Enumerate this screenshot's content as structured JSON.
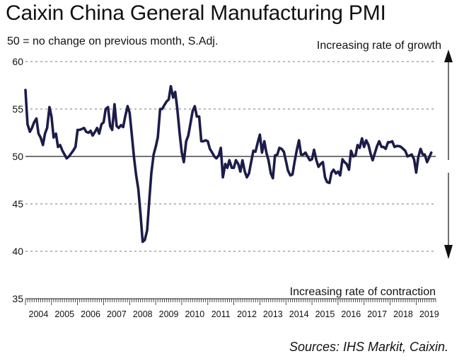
{
  "chart_data": {
    "type": "line",
    "title": "Caixin China General Manufacturing PMI",
    "subtitle": "50 = no change on previous month, S.Adj.",
    "source": "Sources: IHS Markit, Caixin.",
    "annotations": {
      "growth": "Increasing rate of growth",
      "contraction": "Increasing rate of contraction"
    },
    "xlabel": "",
    "ylabel": "",
    "ylim": [
      35,
      60
    ],
    "yticks": [
      35,
      40,
      45,
      50,
      55,
      60
    ],
    "xlim": [
      2004.0,
      2019.75
    ],
    "years": [
      "2004",
      "2005",
      "2006",
      "2007",
      "2008",
      "2009",
      "2010",
      "2011",
      "2012",
      "2013",
      "2014",
      "2015",
      "2016",
      "2017",
      "2018",
      "2019"
    ],
    "reference_line": 50,
    "series": [
      {
        "name": "Caixin China General Manufacturing PMI",
        "color": "#1c1c4a",
        "x": [
          2004.0,
          2004.08,
          2004.17,
          2004.25,
          2004.33,
          2004.42,
          2004.5,
          2004.58,
          2004.67,
          2004.75,
          2004.83,
          2004.92,
          2005.0,
          2005.08,
          2005.17,
          2005.25,
          2005.33,
          2005.42,
          2005.5,
          2005.58,
          2005.67,
          2005.75,
          2005.83,
          2005.92,
          2006.0,
          2006.08,
          2006.17,
          2006.25,
          2006.33,
          2006.42,
          2006.5,
          2006.58,
          2006.67,
          2006.75,
          2006.83,
          2006.92,
          2007.0,
          2007.08,
          2007.17,
          2007.25,
          2007.33,
          2007.42,
          2007.5,
          2007.58,
          2007.67,
          2007.75,
          2007.83,
          2007.92,
          2008.0,
          2008.08,
          2008.17,
          2008.25,
          2008.33,
          2008.42,
          2008.5,
          2008.58,
          2008.67,
          2008.75,
          2008.83,
          2008.92,
          2009.0,
          2009.08,
          2009.17,
          2009.25,
          2009.33,
          2009.42,
          2009.5,
          2009.58,
          2009.67,
          2009.75,
          2009.83,
          2009.92,
          2010.0,
          2010.08,
          2010.17,
          2010.25,
          2010.33,
          2010.42,
          2010.5,
          2010.58,
          2010.67,
          2010.75,
          2010.83,
          2010.92,
          2011.0,
          2011.08,
          2011.17,
          2011.25,
          2011.33,
          2011.42,
          2011.5,
          2011.58,
          2011.67,
          2011.75,
          2011.83,
          2011.92,
          2012.0,
          2012.08,
          2012.17,
          2012.25,
          2012.33,
          2012.42,
          2012.5,
          2012.58,
          2012.67,
          2012.75,
          2012.83,
          2012.92,
          2013.0,
          2013.08,
          2013.17,
          2013.25,
          2013.33,
          2013.42,
          2013.5,
          2013.58,
          2013.67,
          2013.75,
          2013.83,
          2013.92,
          2014.0,
          2014.08,
          2014.17,
          2014.25,
          2014.33,
          2014.42,
          2014.5,
          2014.58,
          2014.67,
          2014.75,
          2014.83,
          2014.92,
          2015.0,
          2015.08,
          2015.17,
          2015.25,
          2015.33,
          2015.42,
          2015.5,
          2015.58,
          2015.67,
          2015.75,
          2015.83,
          2015.92,
          2016.0,
          2016.08,
          2016.17,
          2016.25,
          2016.33,
          2016.42,
          2016.5,
          2016.58,
          2016.67,
          2016.75,
          2016.83,
          2016.92,
          2017.0,
          2017.08,
          2017.17,
          2017.25,
          2017.33,
          2017.42,
          2017.5,
          2017.58,
          2017.67,
          2017.75,
          2017.83,
          2017.92,
          2018.0,
          2018.08,
          2018.17,
          2018.25,
          2018.33,
          2018.42,
          2018.5,
          2018.58,
          2018.67,
          2018.75,
          2018.83,
          2018.92,
          2019.0,
          2019.08,
          2019.17,
          2019.25,
          2019.33,
          2019.42,
          2019.5,
          2019.58
        ],
        "values": [
          57.0,
          53.4,
          52.6,
          53.0,
          53.6,
          54.0,
          52.4,
          52.0,
          51.2,
          52.4,
          53.0,
          55.2,
          54.2,
          52.0,
          52.4,
          51.0,
          51.2,
          50.6,
          50.2,
          49.8,
          50.0,
          50.3,
          50.6,
          51.0,
          52.8,
          52.8,
          52.9,
          53.0,
          52.6,
          52.5,
          52.7,
          52.2,
          52.6,
          53.0,
          52.4,
          53.4,
          53.6,
          55.0,
          55.2,
          53.2,
          52.8,
          55.5,
          53.2,
          53.0,
          53.3,
          53.1,
          54.2,
          55.3,
          54.6,
          52.4,
          49.8,
          48.0,
          46.6,
          43.8,
          41.0,
          41.2,
          42.2,
          45.2,
          48.2,
          50.2,
          51.0,
          52.0,
          55.0,
          55.0,
          55.4,
          55.8,
          56.0,
          57.4,
          56.2,
          56.8,
          55.0,
          52.4,
          50.4,
          49.4,
          51.6,
          52.2,
          53.4,
          54.8,
          55.3,
          54.2,
          54.2,
          51.6,
          51.6,
          51.7,
          51.6,
          50.8,
          50.4,
          50.0,
          49.8,
          50.1,
          50.9,
          47.8,
          49.2,
          48.8,
          49.6,
          48.8,
          48.8,
          49.6,
          49.2,
          48.4,
          49.6,
          48.4,
          47.8,
          48.2,
          49.5,
          50.6,
          50.5,
          51.5,
          52.3,
          50.4,
          51.6,
          50.4,
          49.6,
          48.2,
          47.7,
          50.1,
          50.2,
          50.9,
          50.8,
          50.5,
          49.5,
          48.5,
          48.0,
          48.1,
          49.4,
          50.7,
          51.7,
          50.2,
          50.2,
          50.4,
          50.0,
          49.6,
          49.7,
          50.7,
          49.6,
          48.9,
          49.2,
          49.4,
          47.8,
          47.3,
          47.2,
          48.3,
          48.6,
          48.2,
          48.4,
          48.0,
          49.7,
          49.4,
          49.2,
          48.6,
          50.6,
          50.0,
          50.1,
          51.2,
          50.9,
          51.9,
          51.0,
          51.7,
          51.2,
          50.3,
          49.6,
          50.4,
          51.1,
          51.6,
          51.0,
          51.0,
          50.8,
          51.5,
          51.5,
          51.6,
          51.0,
          51.1,
          51.1,
          51.0,
          50.8,
          50.6,
          50.0,
          50.1,
          50.2,
          49.7,
          48.3,
          49.9,
          50.8,
          50.2,
          50.2,
          49.4,
          49.9,
          50.4
        ]
      }
    ]
  }
}
